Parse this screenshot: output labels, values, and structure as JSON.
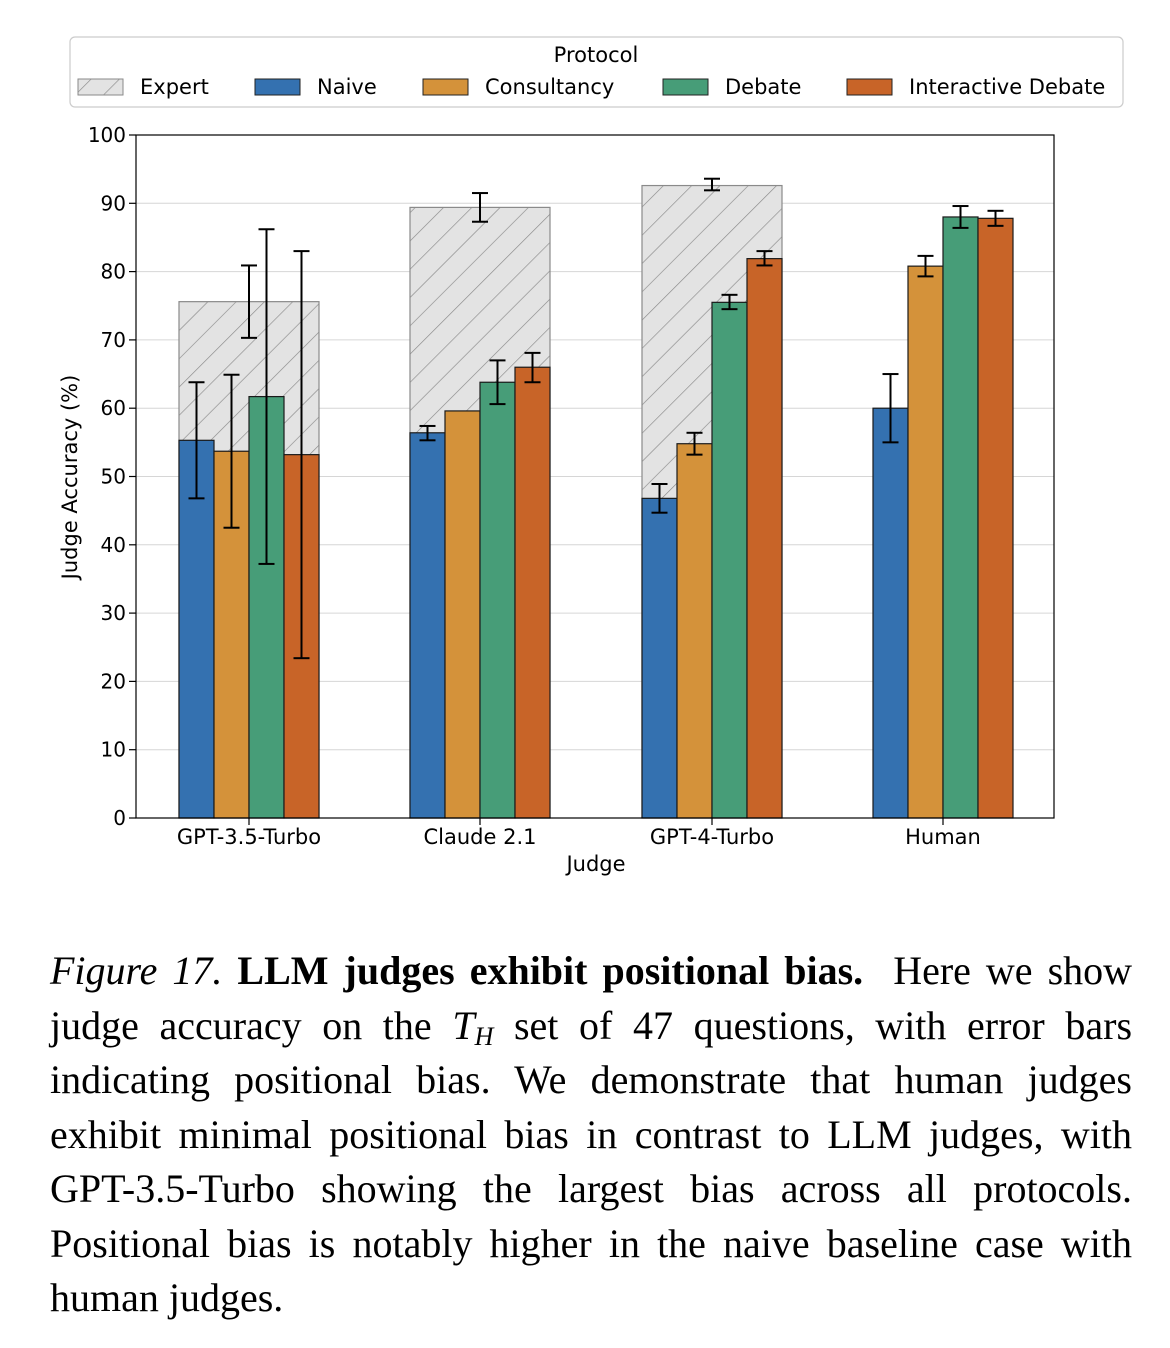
{
  "chart_data": {
    "type": "bar",
    "title": "",
    "xlabel": "Judge",
    "ylabel": "Judge Accuracy (%)",
    "ylim": [
      0,
      100
    ],
    "yticks": [
      0,
      10,
      20,
      30,
      40,
      50,
      60,
      70,
      80,
      90,
      100
    ],
    "grid": true,
    "legend": {
      "title": "Protocol",
      "placement": "top",
      "entries": [
        "Expert",
        "Naive",
        "Consultancy",
        "Debate",
        "Interactive Debate"
      ]
    },
    "categories": [
      "GPT-3.5-Turbo",
      "Claude 2.1",
      "GPT-4-Turbo",
      "Human"
    ],
    "background_series": {
      "name": "Expert",
      "pattern": "hatched",
      "values": [
        75.6,
        89.4,
        92.6,
        null
      ],
      "errors": [
        [
          70.3,
          80.9
        ],
        [
          87.3,
          91.5
        ],
        [
          91.9,
          93.6
        ],
        null
      ]
    },
    "series": [
      {
        "name": "Naive",
        "color": "#3471b0",
        "values": [
          55.3,
          56.4,
          46.8,
          60.0
        ],
        "errors": [
          [
            46.8,
            63.8
          ],
          [
            55.3,
            57.4
          ],
          [
            44.7,
            48.9
          ],
          [
            55.0,
            65.0
          ]
        ]
      },
      {
        "name": "Consultancy",
        "color": "#d4923a",
        "values": [
          53.7,
          59.6,
          54.8,
          80.8
        ],
        "errors": [
          [
            42.5,
            64.9
          ],
          null,
          [
            53.2,
            56.4
          ],
          [
            79.3,
            82.3
          ]
        ]
      },
      {
        "name": "Debate",
        "color": "#479d78",
        "values": [
          61.7,
          63.8,
          75.5,
          88.0
        ],
        "errors": [
          [
            37.2,
            86.2
          ],
          [
            60.6,
            67.0
          ],
          [
            74.5,
            76.6
          ],
          [
            86.4,
            89.6
          ]
        ]
      },
      {
        "name": "Interactive Debate",
        "color": "#c86428",
        "values": [
          53.2,
          66.0,
          81.9,
          87.8
        ],
        "errors": [
          [
            23.4,
            83.0
          ],
          [
            63.8,
            68.1
          ],
          [
            80.9,
            83.0
          ],
          [
            86.7,
            88.9
          ]
        ]
      }
    ]
  },
  "caption": {
    "figure_number": "Figure 17.",
    "title": "LLM judges exhibit positional bias.",
    "text_part1": "Here we show judge accuracy on the",
    "math_symbol": "T",
    "math_subscript": "H",
    "text_part2": "set of 47 questions, with error bars indicating positional bias. We demonstrate that human judges exhibit minimal positional bias in contrast to LLM judges, with GPT-3.5-Turbo showing the largest bias across all protocols. Positional bias is notably higher in the naive baseline case with human judges."
  }
}
